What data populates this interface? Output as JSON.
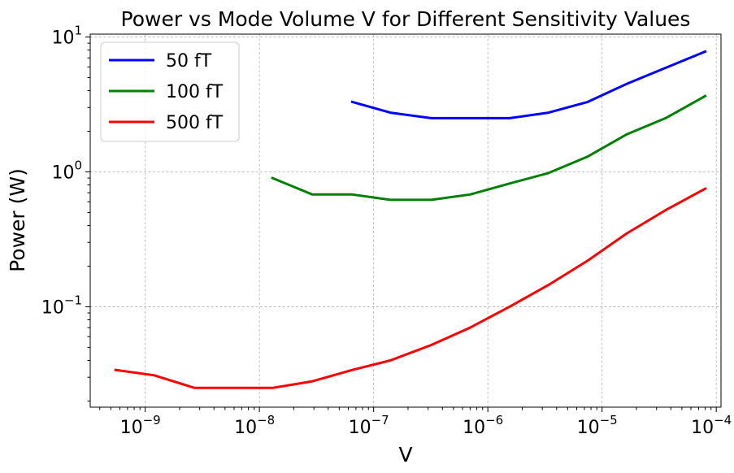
{
  "chart_data": {
    "type": "line",
    "title": "Power vs Mode Volume V for Different Sensitivity Values",
    "xlabel": "V",
    "ylabel": "Power (W)",
    "xscale": "log",
    "yscale": "log",
    "xlim": [
      3.3e-10,
      0.00011
    ],
    "ylim": [
      0.018,
      10.5
    ],
    "grid": true,
    "legend_position": "top-left",
    "x_ticks": [
      {
        "base": "10",
        "exp": "−9",
        "value": 1e-09
      },
      {
        "base": "10",
        "exp": "−8",
        "value": 1e-08
      },
      {
        "base": "10",
        "exp": "−7",
        "value": 1e-07
      },
      {
        "base": "10",
        "exp": "−6",
        "value": 1e-06
      },
      {
        "base": "10",
        "exp": "−5",
        "value": 1e-05
      },
      {
        "base": "10",
        "exp": "−4",
        "value": 0.0001
      }
    ],
    "y_ticks": [
      {
        "base": "10",
        "exp": "−1",
        "value": 0.1
      },
      {
        "base": "10",
        "exp": "0",
        "value": 1
      },
      {
        "base": "10",
        "exp": "1",
        "value": 10
      }
    ],
    "series": [
      {
        "name": "50 fT",
        "color": "#0000ff",
        "x": [
          6.5e-08,
          1.4e-07,
          3.2e-07,
          7e-07,
          1.55e-06,
          3.4e-06,
          7.5e-06,
          1.65e-05,
          3.6e-05,
          8e-05
        ],
        "y": [
          3.3,
          2.75,
          2.5,
          2.5,
          2.5,
          2.75,
          3.3,
          4.5,
          5.9,
          7.8
        ]
      },
      {
        "name": "100 fT",
        "color": "#008000",
        "x": [
          1.3e-08,
          2.9e-08,
          6.5e-08,
          1.4e-07,
          3.2e-07,
          7e-07,
          1.55e-06,
          3.4e-06,
          7.5e-06,
          1.65e-05,
          3.6e-05,
          8e-05
        ],
        "y": [
          0.9,
          0.68,
          0.68,
          0.62,
          0.62,
          0.68,
          0.82,
          0.98,
          1.3,
          1.9,
          2.5,
          3.65
        ]
      },
      {
        "name": "500 fT",
        "color": "#ff0000",
        "x": [
          5.5e-10,
          1.2e-09,
          2.7e-09,
          5.8e-09,
          1.3e-08,
          2.9e-08,
          6.5e-08,
          1.4e-07,
          3.2e-07,
          7e-07,
          1.55e-06,
          3.4e-06,
          7.5e-06,
          1.65e-05,
          3.6e-05,
          8e-05
        ],
        "y": [
          0.034,
          0.031,
          0.025,
          0.025,
          0.025,
          0.028,
          0.034,
          0.04,
          0.052,
          0.07,
          0.1,
          0.145,
          0.22,
          0.35,
          0.52,
          0.75
        ]
      }
    ]
  }
}
